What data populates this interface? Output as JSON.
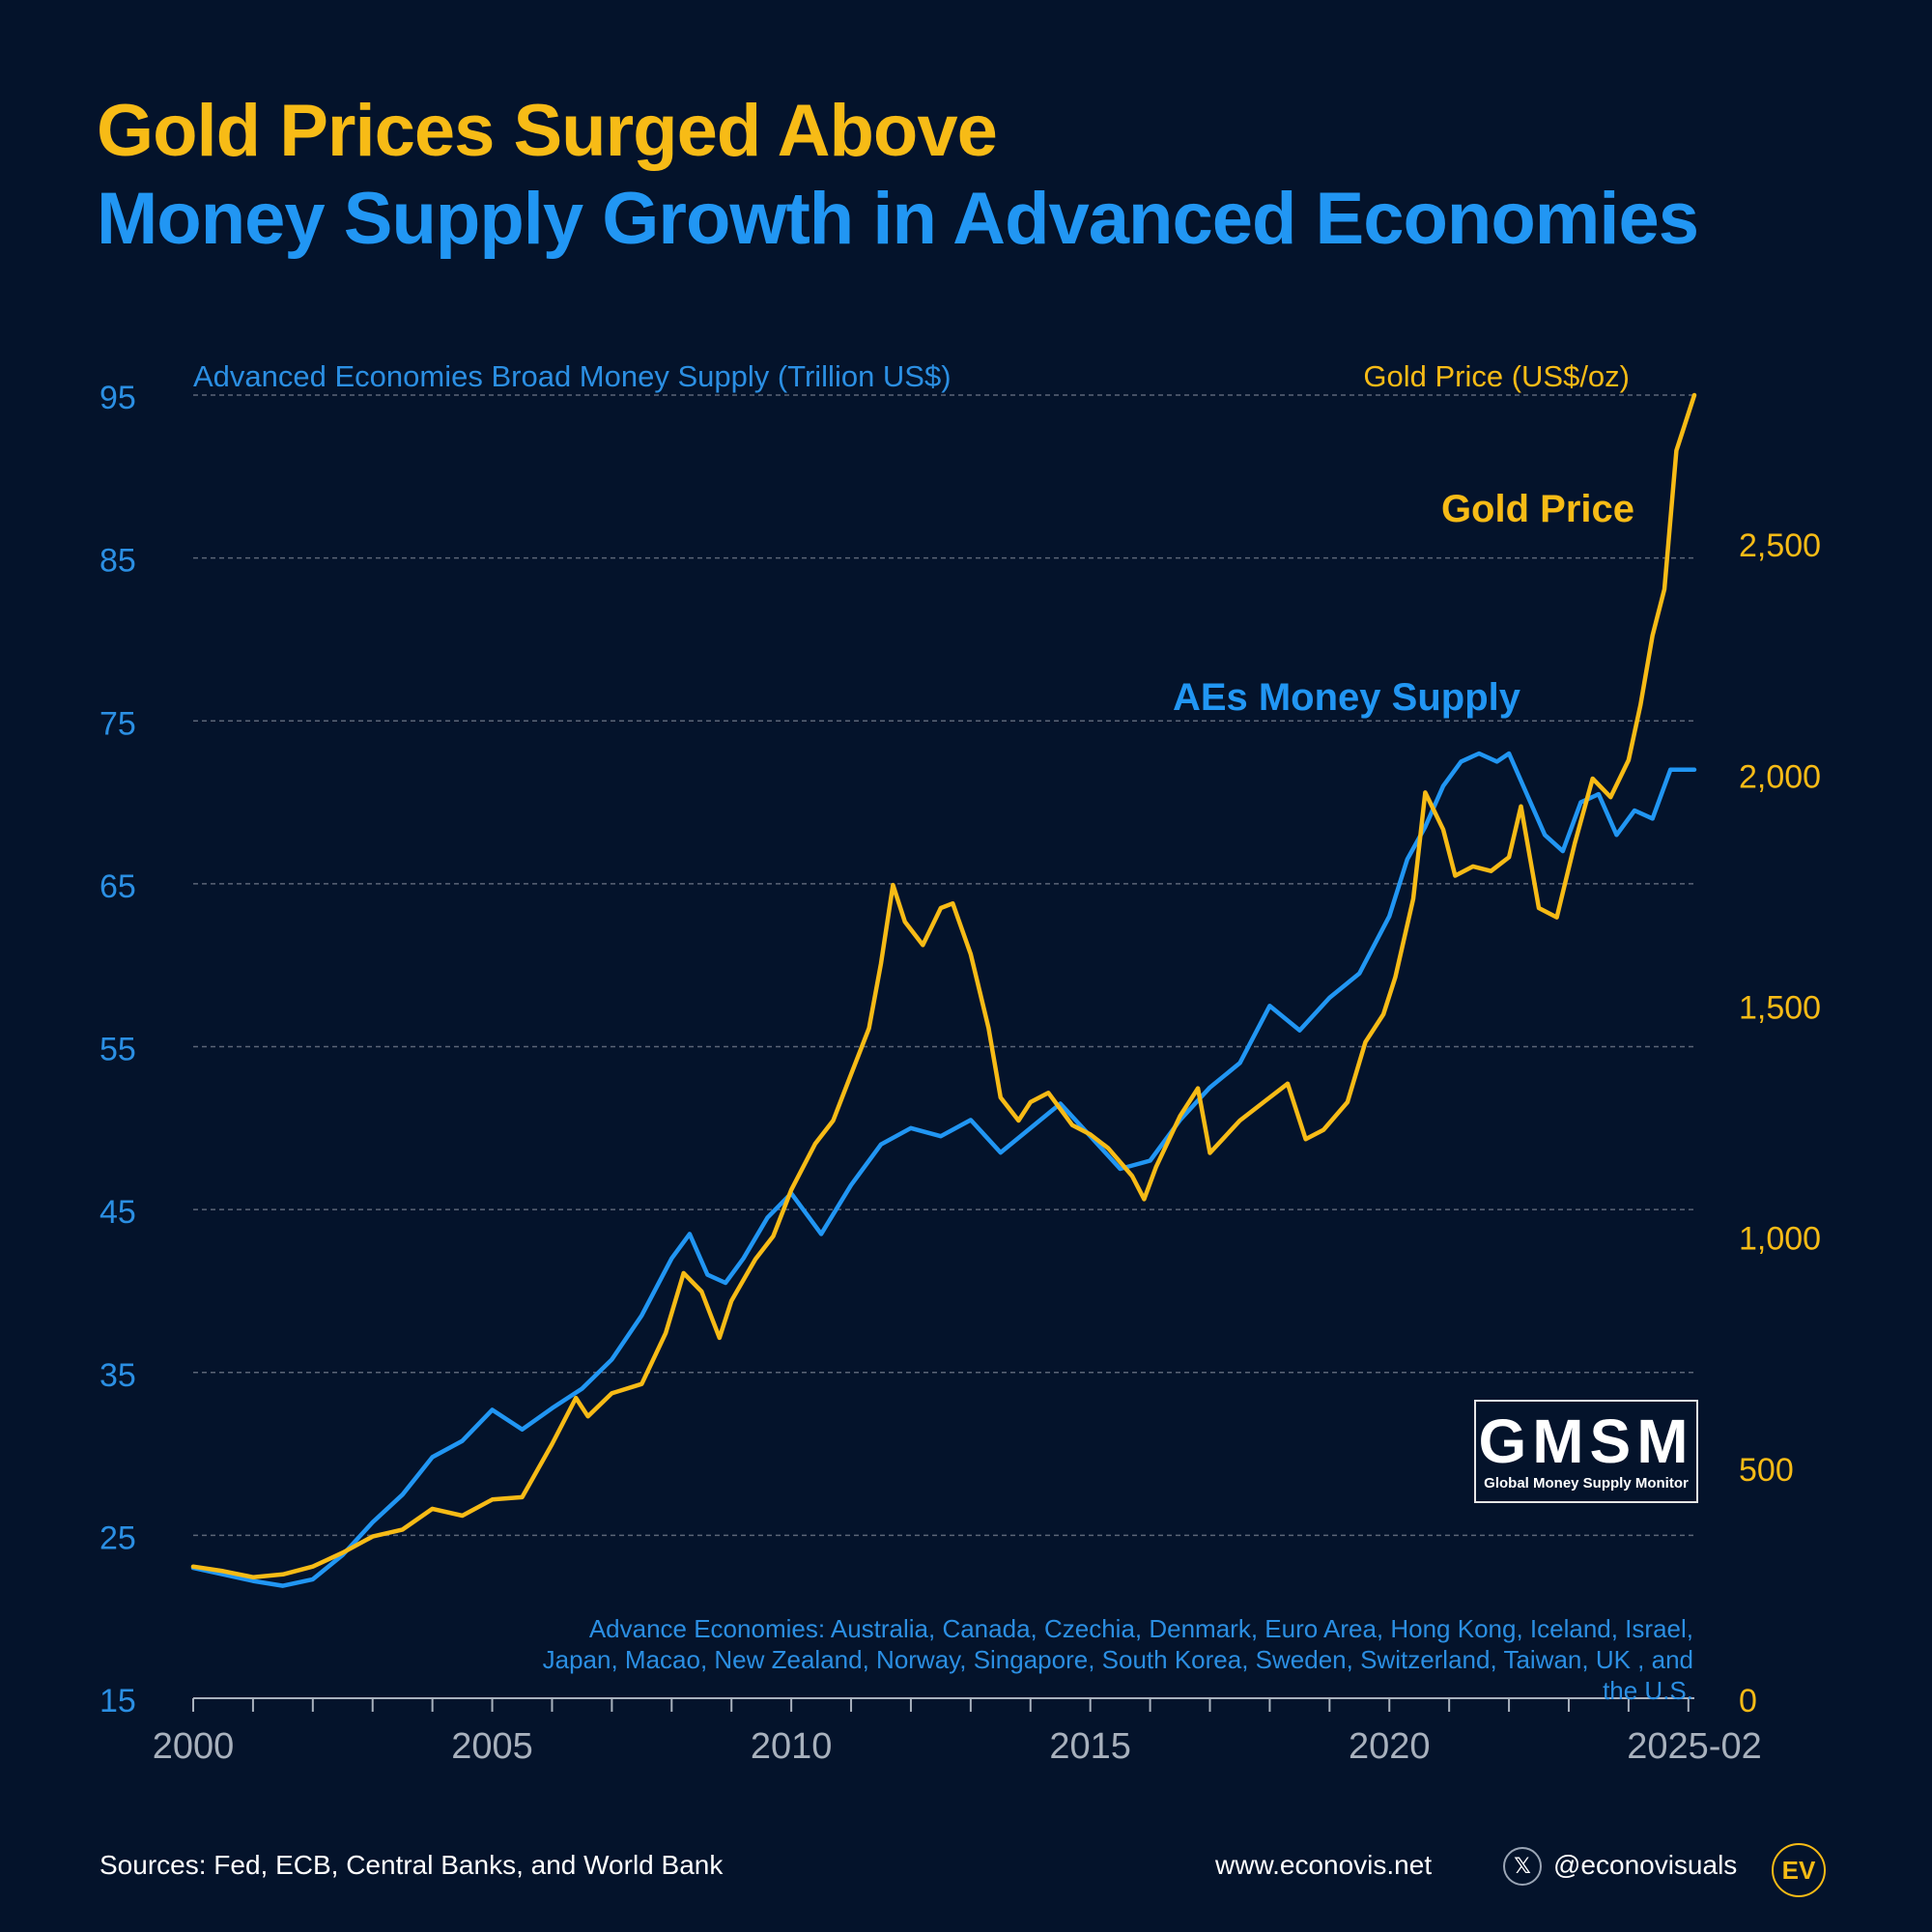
{
  "title": {
    "line1": "Gold Prices Surged Above",
    "line2": "Money Supply Growth in Advanced Economies"
  },
  "footer": {
    "sources": "Sources: Fed, ECB, Central Banks, and World Bank",
    "website": "www.econovis.net",
    "x_icon": "𝕏",
    "handle": "@econovisuals",
    "ev_logo": "EV"
  },
  "badge": {
    "big": "GMSM",
    "small": "Global Money Supply Monitor"
  },
  "note": "Advance Economies: Australia, Canada, Czechia, Denmark, Euro Area, Hong Kong, Iceland, Israel, Japan, Macao, New Zealand, Norway, Singapore, South Korea, Sweden, Switzerland, Taiwan, UK , and the U.S.",
  "colors": {
    "background": "#04132b",
    "gold": "#f7bb16",
    "blue": "#2196f3",
    "grid": "#5b6577",
    "axis_label": "#a8b1bd"
  },
  "chart_data": {
    "type": "line",
    "left_axis": {
      "title": "Advanced Economies Broad Money Supply (Trillion US$)",
      "ylim": [
        15,
        95
      ],
      "ticks": [
        15,
        25,
        35,
        45,
        55,
        65,
        75,
        85,
        95
      ],
      "tick_labels": [
        "15",
        "25",
        "35",
        "45",
        "55",
        "65",
        "75",
        "85",
        "95"
      ]
    },
    "right_axis": {
      "title": "Gold Price (US$/oz)",
      "ylim": [
        0,
        2820
      ],
      "ticks": [
        0,
        500,
        1000,
        1500,
        2000,
        2500
      ],
      "tick_labels": [
        "0",
        "500",
        "1,000",
        "1,500",
        "2,000",
        "2,500"
      ]
    },
    "x_axis": {
      "xlim": [
        2000.0,
        2025.1
      ],
      "ticks": [
        2000,
        2005,
        2010,
        2015,
        2020,
        2025.1
      ],
      "tick_labels": [
        "2000",
        "2005",
        "2010",
        "2015",
        "2020",
        "2025-02"
      ],
      "minor_step": 1
    },
    "series": [
      {
        "name": "AEs Money Supply",
        "axis": "left",
        "color": "#2196f3",
        "x": [
          2000.0,
          2000.5,
          2001.0,
          2001.5,
          2002.0,
          2002.5,
          2003.0,
          2003.5,
          2004.0,
          2004.5,
          2005.0,
          2005.5,
          2006.0,
          2006.5,
          2007.0,
          2007.5,
          2008.0,
          2008.3,
          2008.6,
          2008.9,
          2009.2,
          2009.6,
          2010.0,
          2010.5,
          2011.0,
          2011.5,
          2012.0,
          2012.5,
          2013.0,
          2013.5,
          2014.0,
          2014.5,
          2015.0,
          2015.5,
          2016.0,
          2016.5,
          2017.0,
          2017.5,
          2018.0,
          2018.5,
          2019.0,
          2019.5,
          2020.0,
          2020.3,
          2020.6,
          2020.9,
          2021.2,
          2021.5,
          2021.8,
          2022.0,
          2022.3,
          2022.6,
          2022.9,
          2023.2,
          2023.5,
          2023.8,
          2024.1,
          2024.4,
          2024.7,
          2025.1
        ],
        "values": [
          23.0,
          22.6,
          22.2,
          21.9,
          22.3,
          23.8,
          25.8,
          27.5,
          29.8,
          30.8,
          32.7,
          31.5,
          32.8,
          34.0,
          35.8,
          38.5,
          42.0,
          43.5,
          41.0,
          40.5,
          42.0,
          44.5,
          46.0,
          43.5,
          46.5,
          49.0,
          50.0,
          49.5,
          50.5,
          48.5,
          50.0,
          51.5,
          49.5,
          47.5,
          48.0,
          50.5,
          52.5,
          54.0,
          57.5,
          56.0,
          58.0,
          59.5,
          63.0,
          66.5,
          68.5,
          71.0,
          72.5,
          73.0,
          72.5,
          73.0,
          70.5,
          68.0,
          67.0,
          70.0,
          70.5,
          68.0,
          69.5,
          69.0,
          72.0,
          72.0
        ]
      },
      {
        "name": "Gold Price",
        "axis": "right",
        "color": "#f7bb16",
        "x": [
          2000.0,
          2000.5,
          2001.0,
          2001.5,
          2002.0,
          2002.5,
          2003.0,
          2003.5,
          2004.0,
          2004.5,
          2005.0,
          2005.5,
          2006.0,
          2006.4,
          2006.6,
          2007.0,
          2007.5,
          2007.9,
          2008.2,
          2008.5,
          2008.8,
          2009.0,
          2009.4,
          2009.7,
          2010.0,
          2010.4,
          2010.7,
          2011.0,
          2011.3,
          2011.5,
          2011.7,
          2011.9,
          2012.2,
          2012.5,
          2012.7,
          2013.0,
          2013.3,
          2013.5,
          2013.8,
          2014.0,
          2014.3,
          2014.7,
          2015.0,
          2015.3,
          2015.7,
          2015.9,
          2016.1,
          2016.5,
          2016.8,
          2017.0,
          2017.5,
          2017.9,
          2018.3,
          2018.6,
          2018.9,
          2019.3,
          2019.6,
          2019.9,
          2020.1,
          2020.4,
          2020.6,
          2020.9,
          2021.1,
          2021.4,
          2021.7,
          2022.0,
          2022.2,
          2022.5,
          2022.8,
          2023.1,
          2023.4,
          2023.7,
          2024.0,
          2024.2,
          2024.4,
          2024.6,
          2024.8,
          2025.1
        ],
        "values": [
          285,
          275,
          262,
          268,
          285,
          315,
          350,
          365,
          410,
          395,
          430,
          435,
          550,
          650,
          610,
          660,
          680,
          790,
          920,
          880,
          780,
          860,
          950,
          1000,
          1100,
          1200,
          1250,
          1350,
          1450,
          1590,
          1760,
          1680,
          1630,
          1710,
          1720,
          1610,
          1450,
          1300,
          1250,
          1290,
          1310,
          1240,
          1220,
          1190,
          1130,
          1080,
          1150,
          1260,
          1320,
          1180,
          1250,
          1290,
          1330,
          1210,
          1230,
          1290,
          1420,
          1480,
          1560,
          1730,
          1960,
          1880,
          1780,
          1800,
          1790,
          1820,
          1930,
          1710,
          1690,
          1850,
          1990,
          1950,
          2030,
          2150,
          2300,
          2400,
          2700,
          2820
        ]
      }
    ],
    "series_labels": {
      "gold": "Gold Price",
      "money": "AEs Money Supply"
    },
    "grid": true
  }
}
